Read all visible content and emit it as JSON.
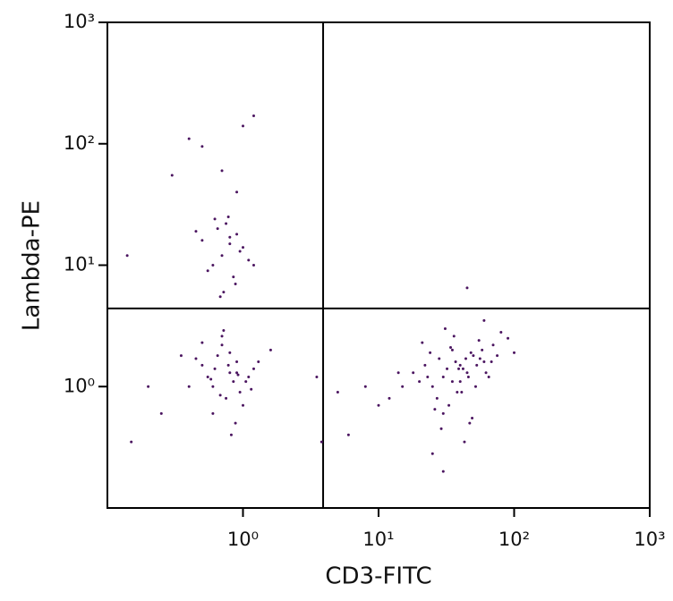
{
  "chart_data": {
    "type": "scatter",
    "x_label": "CD3-FITC",
    "y_label": "Lambda-PE",
    "xscale": "log",
    "yscale": "log",
    "xlim": [
      0.1,
      1000
    ],
    "ylim": [
      0.1,
      1000
    ],
    "xticks": [
      {
        "value": 1,
        "label": "10⁰"
      },
      {
        "value": 10,
        "label": "10¹"
      },
      {
        "value": 100,
        "label": "10²"
      },
      {
        "value": 1000,
        "label": "10³"
      }
    ],
    "yticks": [
      {
        "value": 1,
        "label": "10⁰"
      },
      {
        "value": 10,
        "label": "10¹"
      },
      {
        "value": 100,
        "label": "10²"
      },
      {
        "value": 1000,
        "label": "10³"
      }
    ],
    "gates": {
      "x": 3.9,
      "y": 4.4
    },
    "color": "#4b1560",
    "x": [
      0.8,
      0.6,
      0.9,
      0.7,
      1.1,
      0.5,
      0.75,
      0.65,
      0.85,
      1.2,
      0.45,
      0.95,
      0.7,
      0.55,
      1.0,
      0.8,
      0.6,
      0.9,
      1.3,
      0.4,
      0.72,
      0.88,
      0.62,
      1.05,
      0.5,
      0.78,
      0.68,
      0.92,
      1.15,
      0.35,
      0.25,
      0.2,
      1.6,
      0.82,
      0.58,
      0.8,
      0.7,
      0.9,
      0.6,
      0.75,
      1.0,
      0.85,
      0.5,
      0.65,
      1.1,
      0.78,
      0.72,
      0.95,
      0.55,
      0.8,
      0.68,
      1.2,
      0.45,
      0.88,
      0.62,
      0.3,
      0.4,
      0.5,
      0.7,
      1.0,
      1.2,
      0.9,
      0.14,
      40,
      30,
      50,
      25,
      35,
      60,
      45,
      20,
      55,
      38,
      28,
      70,
      42,
      33,
      48,
      22,
      65,
      36,
      52,
      30,
      18,
      44,
      27,
      58,
      40,
      32,
      80,
      24,
      47,
      37,
      15,
      62,
      34,
      29,
      53,
      41,
      21,
      75,
      46,
      31,
      90,
      26,
      39,
      56,
      43,
      12,
      35,
      68,
      49,
      23,
      8,
      6,
      10,
      5,
      14,
      45,
      60,
      25,
      30,
      100,
      3.8,
      3.5,
      0.15
    ],
    "y": [
      1.3,
      1.0,
      1.6,
      2.2,
      1.2,
      1.5,
      0.8,
      1.8,
      1.1,
      1.4,
      1.7,
      0.9,
      2.6,
      1.2,
      0.7,
      1.9,
      0.6,
      1.3,
      1.6,
      1.0,
      2.9,
      0.5,
      1.4,
      1.1,
      2.3,
      1.5,
      0.85,
      1.25,
      0.95,
      1.8,
      0.6,
      1.0,
      2.0,
      0.4,
      1.15,
      15,
      12,
      18,
      10,
      22,
      14,
      8,
      16,
      20,
      11,
      25,
      6,
      13,
      9,
      17,
      5.5,
      10,
      19,
      7,
      24,
      55,
      110,
      95,
      60,
      140,
      170,
      40,
      12,
      1.5,
      1.2,
      1.8,
      1.0,
      2.0,
      1.6,
      1.3,
      1.1,
      2.4,
      0.9,
      1.7,
      2.2,
      1.4,
      0.7,
      1.9,
      1.5,
      1.2,
      2.6,
      1.0,
      0.6,
      1.3,
      1.7,
      0.8,
      2.0,
      1.1,
      1.4,
      2.8,
      1.9,
      0.5,
      1.6,
      1.0,
      1.3,
      2.1,
      0.45,
      1.5,
      0.9,
      2.3,
      1.8,
      1.2,
      3.0,
      2.5,
      0.65,
      1.4,
      1.7,
      0.35,
      0.8,
      1.1,
      1.6,
      0.55,
      1.2,
      1.0,
      0.4,
      0.7,
      0.9,
      1.3,
      6.5,
      3.5,
      0.28,
      0.2,
      1.9,
      0.35,
      1.2,
      0.35
    ]
  }
}
